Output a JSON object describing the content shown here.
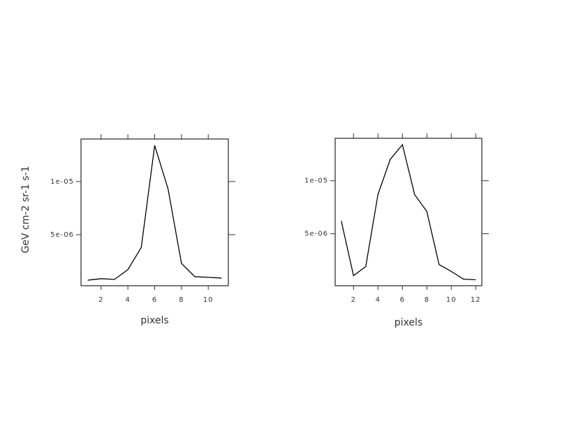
{
  "chart_data": [
    {
      "type": "line",
      "ylabel": "GeV cm-2 sr-1 s-1",
      "xlabel": "pixels",
      "color": "#000000",
      "x": [
        1,
        2,
        3,
        4,
        5,
        6,
        7,
        8,
        9,
        10,
        11
      ],
      "values": [
        7.2e-07,
        8.6e-07,
        7.9e-07,
        1.71e-06,
        3.8e-06,
        1.34e-05,
        9.3e-06,
        2.3e-06,
        1.05e-06,
        9.9e-07,
        9.2e-07
      ],
      "xlim": [
        0.5,
        11.5
      ],
      "xticks": [
        2,
        4,
        6,
        8,
        10
      ],
      "ylim": [
        2e-07,
        1.4e-05
      ],
      "yticks": [
        {
          "value": 5e-06,
          "label": "5e-06"
        },
        {
          "value": 1e-05,
          "label": "1e-05"
        }
      ]
    },
    {
      "type": "line",
      "xlabel": "pixels",
      "color": "#000000",
      "x": [
        1,
        2,
        3,
        4,
        5,
        6,
        7,
        8,
        9,
        10,
        11,
        12
      ],
      "values": [
        6.2e-06,
        1.05e-06,
        1.9e-06,
        8.7e-06,
        1.2e-05,
        1.34e-05,
        8.7e-06,
        7.1e-06,
        2.1e-06,
        1.45e-06,
        7.2e-07,
        6.6e-07
      ],
      "xlim": [
        0.5,
        12.5
      ],
      "xticks": [
        2,
        4,
        6,
        8,
        10,
        12
      ],
      "ylim": [
        1e-07,
        1.4e-05
      ],
      "yticks": [
        {
          "value": 5e-06,
          "label": "5e-06"
        },
        {
          "value": 1e-05,
          "label": "1e-05"
        }
      ]
    }
  ]
}
